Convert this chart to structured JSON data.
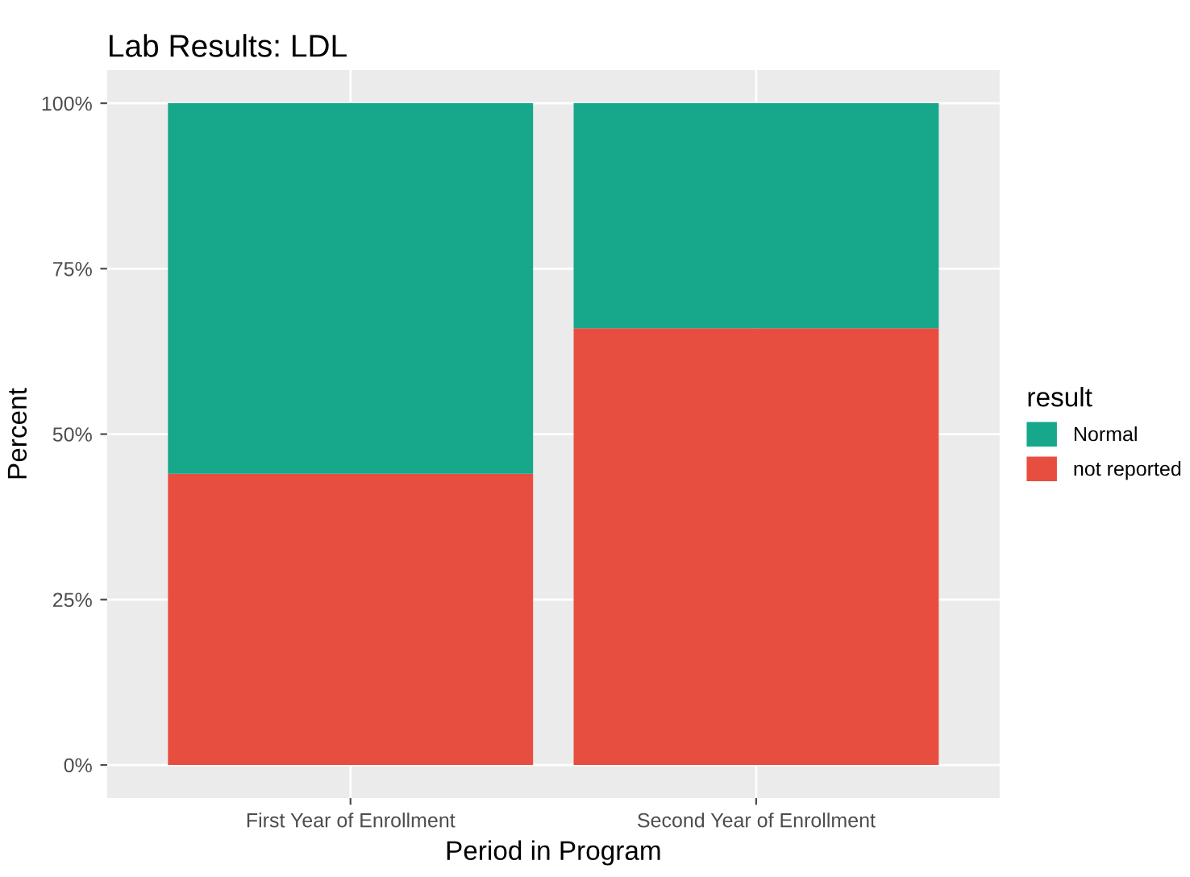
{
  "chart_data": {
    "type": "bar",
    "title": "Lab Results: LDL",
    "xlabel": "Period in Program",
    "ylabel": "Percent",
    "legend_title": "result",
    "categories": [
      "First Year of Enrollment",
      "Second Year of Enrollment"
    ],
    "stacked": true,
    "series": [
      {
        "name": "not reported",
        "color": "#e84e3f",
        "values": [
          44,
          66
        ]
      },
      {
        "name": "Normal",
        "color": "#17a78b",
        "values": [
          56,
          34
        ]
      }
    ],
    "ylim": [
      -5,
      105
    ],
    "yticks": [
      {
        "value": 0,
        "label": "0%"
      },
      {
        "value": 25,
        "label": "25%"
      },
      {
        "value": 50,
        "label": "50%"
      },
      {
        "value": 75,
        "label": "75%"
      },
      {
        "value": 100,
        "label": "100%"
      }
    ],
    "grid": true,
    "legend": "right"
  }
}
